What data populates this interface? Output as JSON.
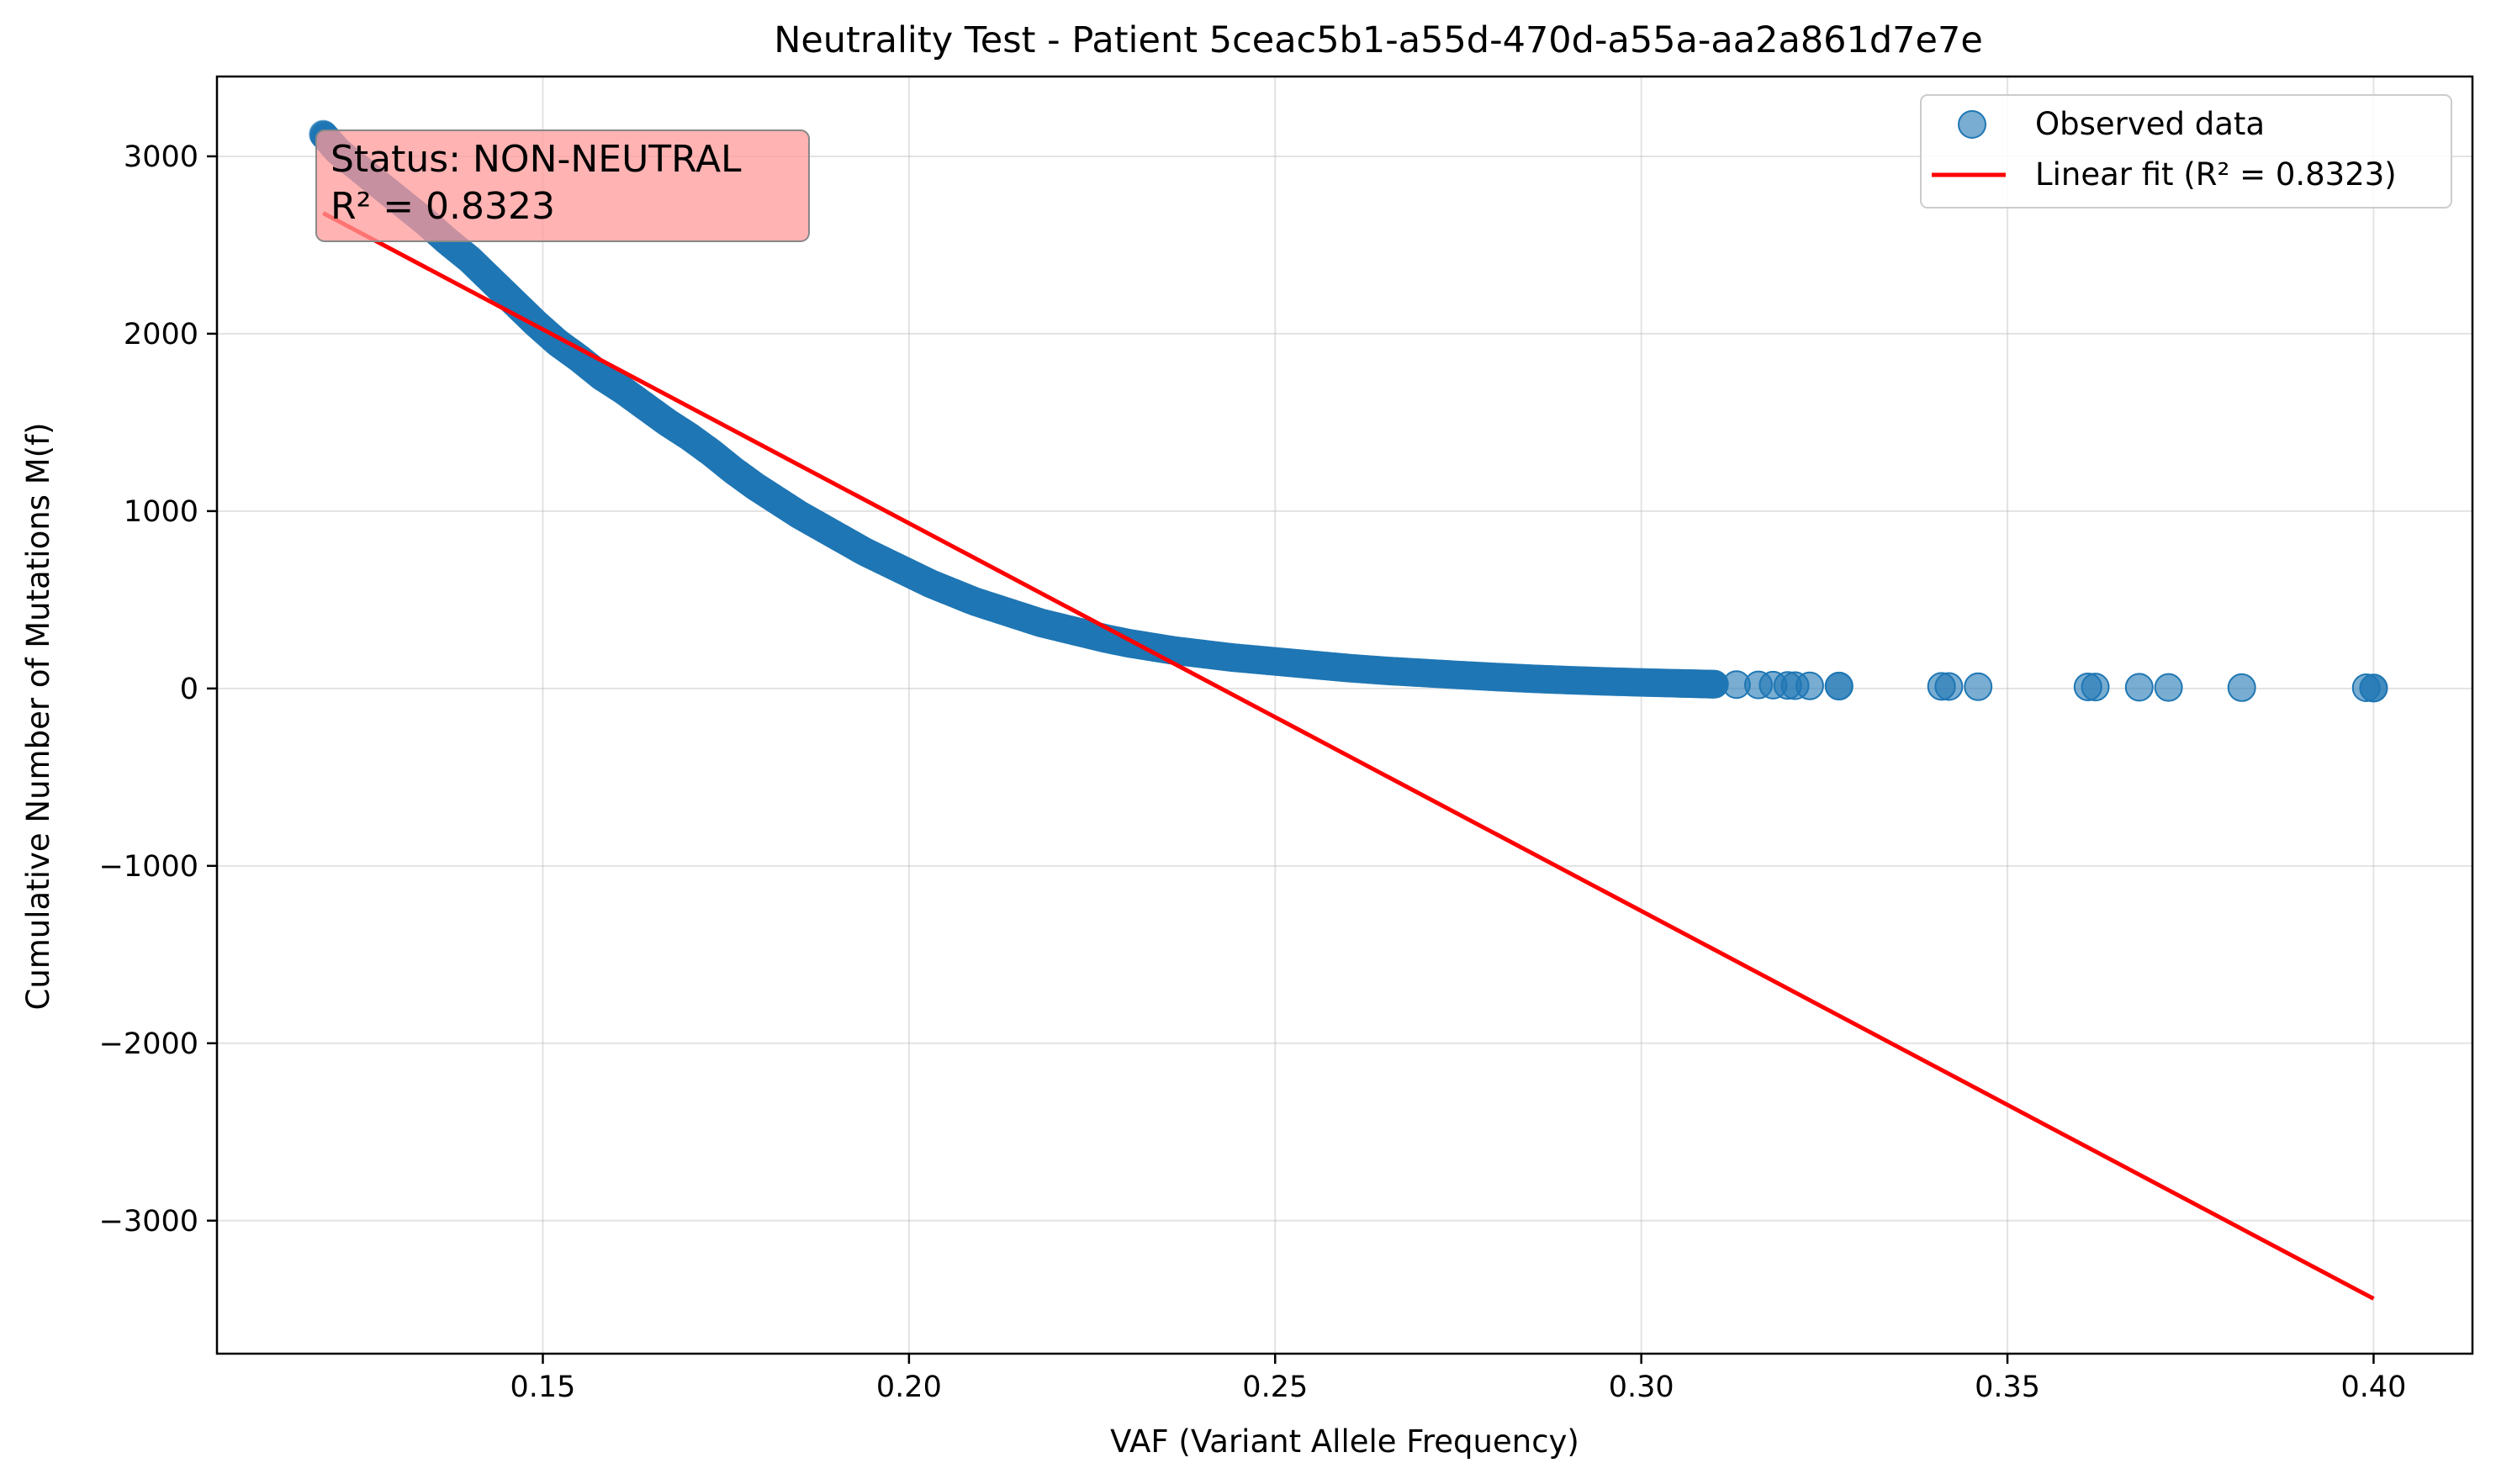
{
  "chart_data": {
    "type": "scatter",
    "title": "Neutrality Test - Patient 5ceac5b1-a55d-470d-a55a-aa2a861d7e7e",
    "xlabel": "VAF (Variant Allele Frequency)",
    "ylabel": "Cumulative Number of Mutations M(f)",
    "xlim": [
      0.1055,
      0.4135
    ],
    "ylim": [
      -3750,
      3450
    ],
    "xticks": [
      0.15,
      0.2,
      0.25,
      0.3,
      0.35,
      0.4
    ],
    "xtick_labels": [
      "0.15",
      "0.20",
      "0.25",
      "0.30",
      "0.35",
      "0.40"
    ],
    "yticks": [
      3000,
      2000,
      1000,
      0,
      -1000,
      -2000,
      -3000
    ],
    "ytick_labels": [
      "3000",
      "2000",
      "1000",
      "0",
      "−1000",
      "−2000",
      "−3000"
    ],
    "grid": true,
    "legend_position": "top-right",
    "series": [
      {
        "name": "Observed data",
        "kind": "scatter",
        "color": "#1f77b4",
        "alpha": 0.6,
        "curve_points": [
          [
            0.12,
            3125
          ],
          [
            0.122,
            3030
          ],
          [
            0.125,
            2930
          ],
          [
            0.128,
            2830
          ],
          [
            0.131,
            2730
          ],
          [
            0.134,
            2630
          ],
          [
            0.137,
            2520
          ],
          [
            0.14,
            2420
          ],
          [
            0.143,
            2300
          ],
          [
            0.146,
            2180
          ],
          [
            0.149,
            2060
          ],
          [
            0.152,
            1950
          ],
          [
            0.155,
            1860
          ],
          [
            0.158,
            1760
          ],
          [
            0.161,
            1680
          ],
          [
            0.164,
            1590
          ],
          [
            0.167,
            1500
          ],
          [
            0.17,
            1420
          ],
          [
            0.173,
            1330
          ],
          [
            0.176,
            1230
          ],
          [
            0.179,
            1140
          ],
          [
            0.182,
            1060
          ],
          [
            0.185,
            980
          ],
          [
            0.188,
            910
          ],
          [
            0.191,
            840
          ],
          [
            0.194,
            770
          ],
          [
            0.197,
            710
          ],
          [
            0.2,
            650
          ],
          [
            0.203,
            590
          ],
          [
            0.206,
            540
          ],
          [
            0.209,
            490
          ],
          [
            0.212,
            450
          ],
          [
            0.215,
            410
          ],
          [
            0.218,
            370
          ],
          [
            0.221,
            340
          ],
          [
            0.224,
            310
          ],
          [
            0.227,
            280
          ],
          [
            0.23,
            255
          ],
          [
            0.233,
            235
          ],
          [
            0.236,
            215
          ],
          [
            0.24,
            195
          ],
          [
            0.244,
            175
          ],
          [
            0.248,
            160
          ],
          [
            0.252,
            145
          ],
          [
            0.256,
            130
          ],
          [
            0.26,
            115
          ],
          [
            0.265,
            100
          ],
          [
            0.27,
            88
          ],
          [
            0.275,
            76
          ],
          [
            0.28,
            65
          ],
          [
            0.285,
            55
          ],
          [
            0.29,
            47
          ],
          [
            0.295,
            40
          ],
          [
            0.3,
            34
          ],
          [
            0.305,
            29
          ],
          [
            0.308,
            26
          ],
          [
            0.31,
            24
          ]
        ],
        "outliers": [
          [
            0.313,
            22
          ],
          [
            0.316,
            20
          ],
          [
            0.318,
            19
          ],
          [
            0.32,
            17
          ],
          [
            0.321,
            16
          ],
          [
            0.323,
            15
          ],
          [
            0.327,
            14
          ],
          [
            0.327,
            13
          ],
          [
            0.341,
            12
          ],
          [
            0.342,
            11
          ],
          [
            0.346,
            10
          ],
          [
            0.361,
            9
          ],
          [
            0.362,
            8
          ],
          [
            0.368,
            7
          ],
          [
            0.372,
            6
          ],
          [
            0.382,
            5
          ],
          [
            0.399,
            4
          ],
          [
            0.4,
            3
          ],
          [
            0.4,
            2
          ]
        ]
      },
      {
        "name": "Linear fit (R² = 0.8323)",
        "kind": "line",
        "color": "#ff0000",
        "x": [
          0.12,
          0.4
        ],
        "y": [
          2680,
          -3440
        ]
      }
    ],
    "annotation": {
      "lines": [
        "Status: NON-NEUTRAL",
        "R² = 0.8323"
      ],
      "background": "#ff9999"
    }
  }
}
